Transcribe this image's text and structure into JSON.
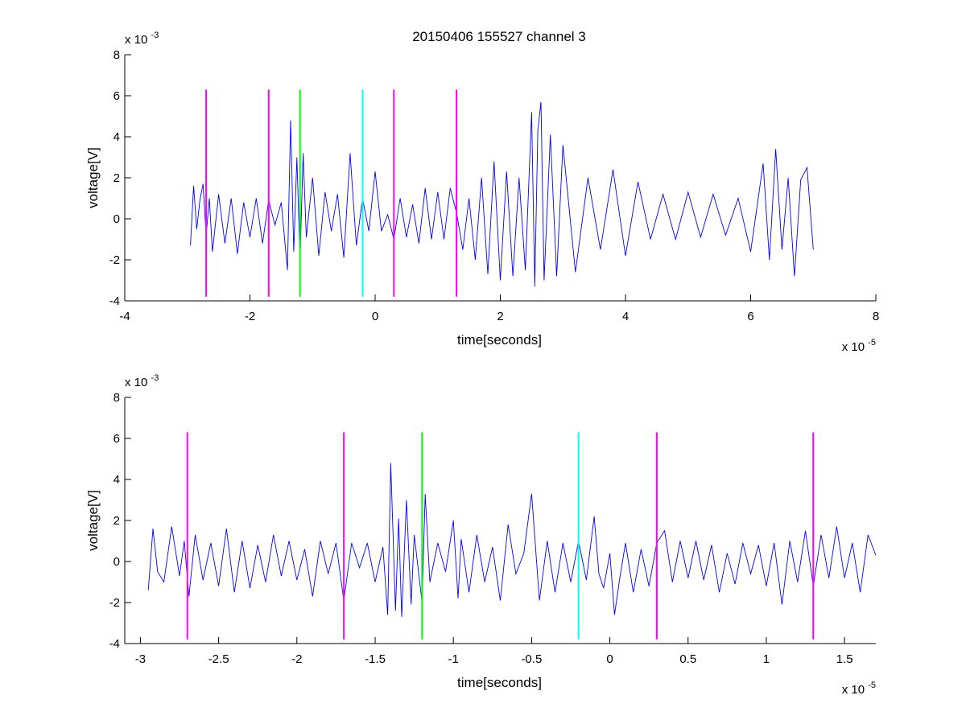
{
  "figure": {
    "title": "20150406 155527 channel 3"
  },
  "chart_data": [
    {
      "type": "line",
      "title": "20150406 155527 channel 3",
      "xlabel": "time[seconds]",
      "ylabel": "voltage[V]",
      "x_multiplier": "x 10",
      "x_exponent": "-5",
      "y_multiplier": "x 10",
      "y_exponent": "-3",
      "xlim": [
        -4,
        8
      ],
      "ylim": [
        -4,
        8
      ],
      "x_ticks": [
        -4,
        -2,
        0,
        2,
        4,
        6,
        8
      ],
      "x_tick_labels": [
        "-4",
        "-2",
        "0",
        "2",
        "4",
        "6",
        "8"
      ],
      "y_ticks": [
        -4,
        -2,
        0,
        2,
        4,
        6,
        8
      ],
      "y_tick_labels": [
        "-4",
        "-2",
        "0",
        "2",
        "4",
        "6",
        "8"
      ],
      "grid": false,
      "series": [
        {
          "color": "#0000ff",
          "x": [
            -2.95,
            -2.9,
            -2.85,
            -2.8,
            -2.75,
            -2.7,
            -2.65,
            -2.6,
            -2.5,
            -2.4,
            -2.3,
            -2.2,
            -2.1,
            -2.0,
            -1.9,
            -1.8,
            -1.7,
            -1.6,
            -1.5,
            -1.4,
            -1.35,
            -1.3,
            -1.25,
            -1.2,
            -1.15,
            -1.1,
            -1.0,
            -0.9,
            -0.8,
            -0.7,
            -0.6,
            -0.5,
            -0.4,
            -0.3,
            -0.2,
            -0.1,
            0.0,
            0.1,
            0.2,
            0.3,
            0.4,
            0.5,
            0.6,
            0.7,
            0.8,
            0.9,
            1.0,
            1.1,
            1.2,
            1.3,
            1.4,
            1.5,
            1.6,
            1.7,
            1.8,
            1.9,
            2.0,
            2.1,
            2.2,
            2.3,
            2.4,
            2.5,
            2.55,
            2.6,
            2.65,
            2.7,
            2.8,
            2.9,
            3.0,
            3.2,
            3.4,
            3.6,
            3.8,
            4.0,
            4.2,
            4.4,
            4.6,
            4.8,
            5.0,
            5.2,
            5.4,
            5.6,
            5.8,
            6.0,
            6.2,
            6.3,
            6.4,
            6.5,
            6.6,
            6.7,
            6.8,
            6.9,
            7.0
          ],
          "y": [
            -1.3,
            1.6,
            -0.5,
            0.9,
            1.7,
            -0.8,
            1.0,
            -1.6,
            1.2,
            -1.2,
            1.0,
            -1.7,
            0.8,
            -0.9,
            1.0,
            -1.2,
            0.9,
            -0.3,
            0.8,
            -2.5,
            4.8,
            -1.6,
            3.0,
            -2.0,
            3.2,
            -0.9,
            2.0,
            -1.8,
            1.3,
            -0.6,
            1.2,
            -1.9,
            3.2,
            -1.3,
            1.0,
            -0.6,
            2.3,
            -0.6,
            0.2,
            -1.0,
            1.0,
            -0.9,
            0.7,
            -1.2,
            1.5,
            -1.0,
            1.3,
            -1.0,
            1.5,
            0.3,
            -1.5,
            1.0,
            -2.0,
            2.0,
            -2.7,
            2.8,
            -3.0,
            2.3,
            -2.8,
            2.0,
            -2.5,
            5.2,
            -3.3,
            4.3,
            5.7,
            -3.0,
            4.1,
            -2.8,
            3.6,
            -2.6,
            2.0,
            -1.5,
            2.4,
            -1.8,
            1.8,
            -1.0,
            1.2,
            -1.0,
            1.3,
            -0.9,
            1.2,
            -0.8,
            1.0,
            -1.6,
            2.7,
            -2.0,
            3.4,
            -1.5,
            2.0,
            -2.8,
            1.9,
            2.5,
            -1.5
          ]
        }
      ],
      "vlines": [
        {
          "x": -2.7,
          "color": "#ff00ff"
        },
        {
          "x": -1.7,
          "color": "#ff00ff"
        },
        {
          "x": -1.2,
          "color": "#00ff00"
        },
        {
          "x": -0.2,
          "color": "#00ffff"
        },
        {
          "x": 0.3,
          "color": "#ff00ff"
        },
        {
          "x": 1.3,
          "color": "#ff00ff"
        }
      ],
      "vline_range": [
        -3.8,
        6.3
      ]
    },
    {
      "type": "line",
      "title": "",
      "xlabel": "time[seconds]",
      "ylabel": "voltage[V]",
      "x_multiplier": "x 10",
      "x_exponent": "-5",
      "y_multiplier": "x 10",
      "y_exponent": "-3",
      "xlim": [
        -3.1,
        1.7
      ],
      "ylim": [
        -4,
        8
      ],
      "x_ticks": [
        -3,
        -2.5,
        -2,
        -1.5,
        -1,
        -0.5,
        0,
        0.5,
        1,
        1.5
      ],
      "x_tick_labels": [
        "-3",
        "-2.5",
        "-2",
        "-1.5",
        "-1",
        "-0.5",
        "0",
        "0.5",
        "1",
        "1.5"
      ],
      "y_ticks": [
        -4,
        -2,
        0,
        2,
        4,
        6,
        8
      ],
      "y_tick_labels": [
        "-4",
        "-2",
        "0",
        "2",
        "4",
        "6",
        "8"
      ],
      "grid": false,
      "series": [
        {
          "color": "#0000ff",
          "x": [
            -2.95,
            -2.92,
            -2.89,
            -2.85,
            -2.8,
            -2.75,
            -2.72,
            -2.69,
            -2.65,
            -2.6,
            -2.55,
            -2.5,
            -2.45,
            -2.4,
            -2.35,
            -2.3,
            -2.25,
            -2.2,
            -2.15,
            -2.1,
            -2.05,
            -2.0,
            -1.95,
            -1.9,
            -1.85,
            -1.8,
            -1.75,
            -1.7,
            -1.65,
            -1.6,
            -1.55,
            -1.5,
            -1.45,
            -1.42,
            -1.4,
            -1.37,
            -1.35,
            -1.33,
            -1.3,
            -1.27,
            -1.25,
            -1.2,
            -1.18,
            -1.15,
            -1.1,
            -1.05,
            -1.0,
            -0.97,
            -0.95,
            -0.9,
            -0.85,
            -0.8,
            -0.75,
            -0.7,
            -0.65,
            -0.6,
            -0.55,
            -0.5,
            -0.45,
            -0.4,
            -0.35,
            -0.3,
            -0.25,
            -0.2,
            -0.15,
            -0.1,
            -0.07,
            -0.04,
            0.0,
            0.03,
            0.06,
            0.1,
            0.15,
            0.2,
            0.25,
            0.3,
            0.35,
            0.4,
            0.45,
            0.5,
            0.55,
            0.6,
            0.65,
            0.7,
            0.75,
            0.8,
            0.85,
            0.9,
            0.95,
            1.0,
            1.05,
            1.1,
            1.15,
            1.2,
            1.25,
            1.3,
            1.35,
            1.4,
            1.45,
            1.5,
            1.55,
            1.6,
            1.65,
            1.7
          ],
          "y": [
            -1.4,
            1.6,
            -0.5,
            -1.0,
            1.7,
            -0.7,
            1.0,
            -1.7,
            1.3,
            -0.9,
            0.9,
            -1.2,
            1.6,
            -1.5,
            1.0,
            -1.3,
            0.8,
            -1.0,
            1.3,
            -0.7,
            1.0,
            -0.9,
            0.6,
            -1.7,
            1.0,
            -0.6,
            0.9,
            -1.9,
            0.9,
            -0.3,
            0.9,
            -1.0,
            0.7,
            -2.6,
            4.8,
            -2.4,
            2.1,
            -2.7,
            3.0,
            -2.1,
            1.3,
            -2.0,
            3.3,
            -1.0,
            0.9,
            -0.5,
            2.0,
            -1.8,
            1.1,
            -1.5,
            1.3,
            -1.0,
            0.7,
            -1.9,
            1.8,
            -0.6,
            0.4,
            3.3,
            -1.9,
            1.0,
            -1.5,
            0.9,
            -1.0,
            1.0,
            -0.9,
            2.2,
            -0.6,
            -1.3,
            0.4,
            -2.6,
            -1.0,
            0.9,
            -1.5,
            0.6,
            -1.2,
            0.9,
            1.5,
            -1.0,
            1.0,
            -0.8,
            1.0,
            -0.9,
            0.8,
            -1.5,
            0.4,
            -1.1,
            0.9,
            -0.6,
            0.8,
            -1.2,
            0.9,
            -2.1,
            1.0,
            -1.0,
            1.5,
            -1.2,
            1.3,
            -0.8,
            1.7,
            -0.8,
            0.9,
            -1.5,
            1.3,
            0.3
          ],
          "note": ""
        }
      ],
      "vlines": [
        {
          "x": -2.7,
          "color": "#ff00ff"
        },
        {
          "x": -1.7,
          "color": "#ff00ff"
        },
        {
          "x": -1.2,
          "color": "#00ff00"
        },
        {
          "x": -0.2,
          "color": "#00ffff"
        },
        {
          "x": 0.3,
          "color": "#ff00ff"
        },
        {
          "x": 1.3,
          "color": "#ff00ff"
        }
      ],
      "vline_range": [
        -3.8,
        6.3
      ]
    }
  ]
}
